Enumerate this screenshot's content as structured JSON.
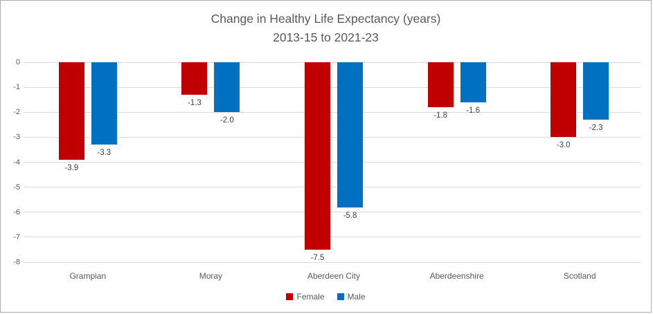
{
  "chart_data": {
    "type": "bar",
    "title": "Change in Healthy Life Expectancy (years) 2013-15 to 2021-23",
    "title_line1": "Change in Healthy Life Expectancy (years)",
    "title_line2": "2013-15 to 2021-23",
    "categories": [
      "Grampian",
      "Moray",
      "Aberdeen City",
      "Aberdeenshire",
      "Scotland"
    ],
    "series": [
      {
        "name": "Female",
        "color": "#c00000",
        "values": [
          -3.9,
          -1.3,
          -7.5,
          -1.8,
          -3.0
        ]
      },
      {
        "name": "Male",
        "color": "#0070c0",
        "values": [
          -3.3,
          -2.0,
          -5.8,
          -1.6,
          -2.3
        ]
      }
    ],
    "data_labels": [
      "-3.9",
      "-3.3",
      "-1.3",
      "-2.0",
      "-7.5",
      "-5.8",
      "-1.8",
      "-1.6",
      "-3.0",
      "-2.3"
    ],
    "ylim": [
      -8,
      0
    ],
    "yticks": [
      0,
      -1,
      -2,
      -3,
      -4,
      -5,
      -6,
      -7,
      -8
    ],
    "grid": true,
    "legend_position": "bottom",
    "legend": [
      "Female",
      "Male"
    ]
  },
  "colors": {
    "female": "#c00000",
    "male": "#0070c0",
    "gridline": "#d9d9d9",
    "axis_text": "#595959",
    "data_label_text": "#404040",
    "title_text": "#595959",
    "frame_border": "#ababab"
  }
}
